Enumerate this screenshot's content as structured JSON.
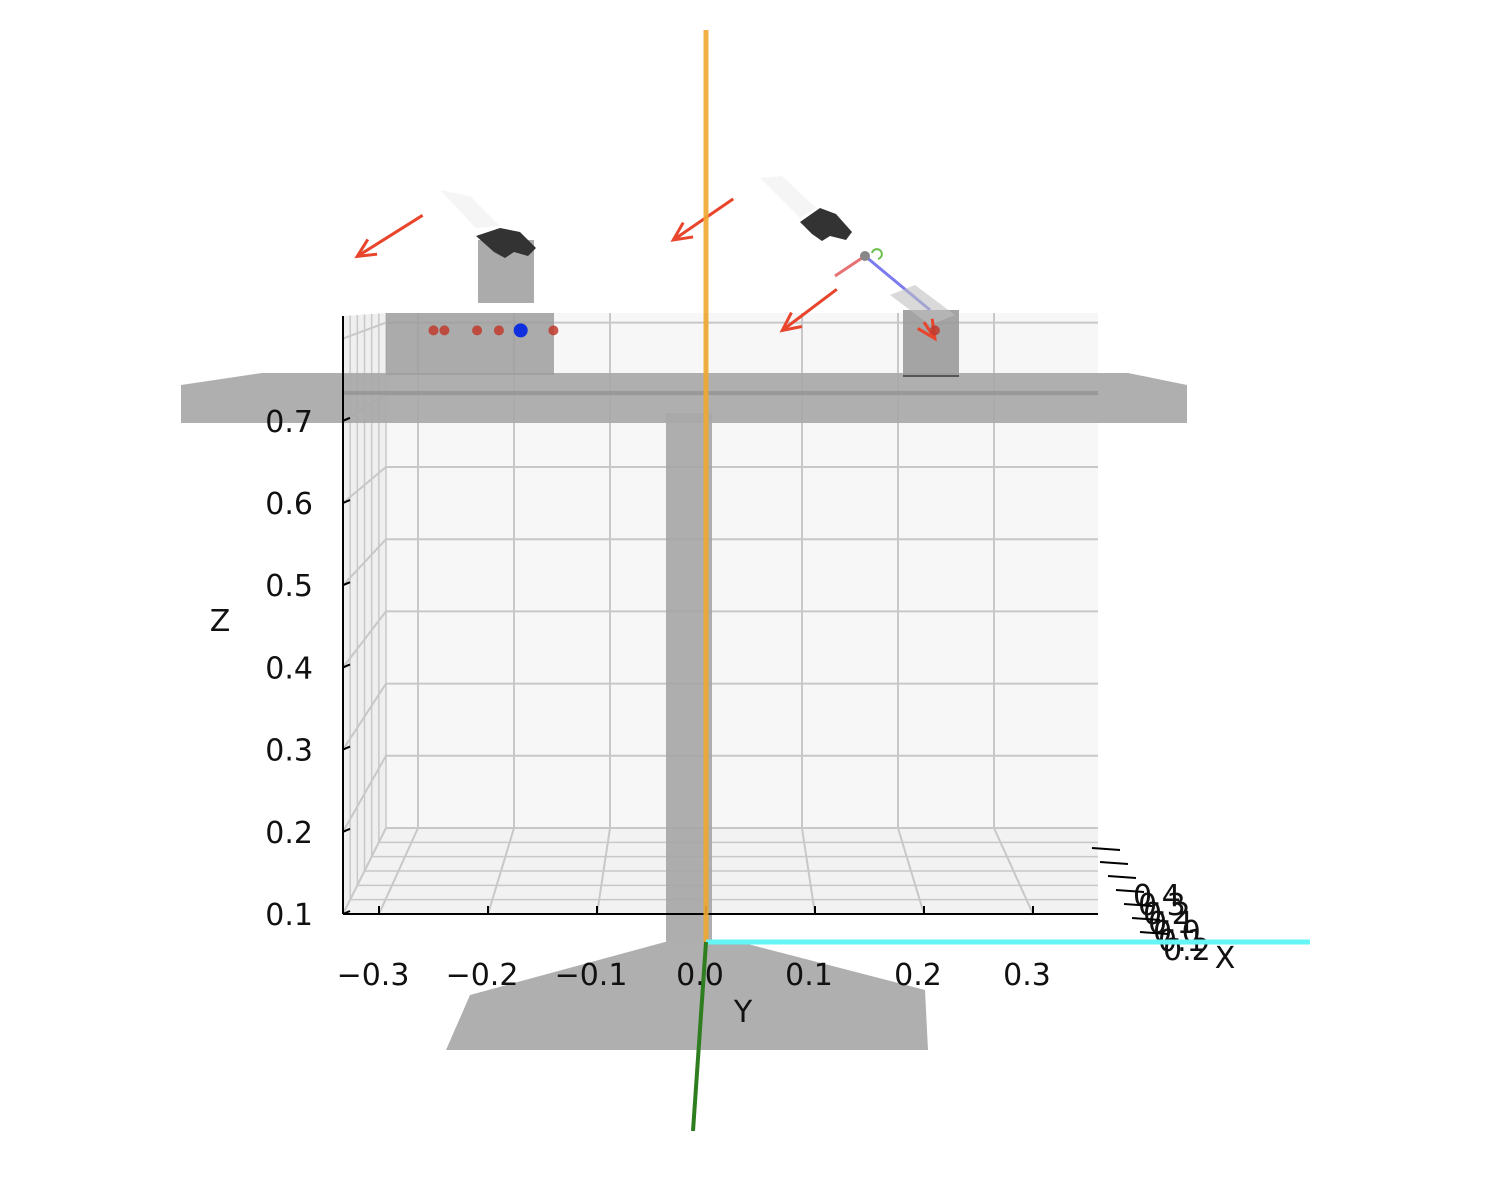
{
  "chart_data": {
    "type": "scatter",
    "projection": "3d",
    "view": "looking along the X axis (Y horizontal, Z vertical)",
    "xlabel": "X",
    "ylabel": "Y",
    "zlabel": "Z",
    "ylim": [
      -0.35,
      0.36
    ],
    "zlim": [
      0.1,
      0.8
    ],
    "y_ticks": [
      "−0.3",
      "−0.2",
      "−0.1",
      "0.0",
      "0.1",
      "0.2",
      "0.3"
    ],
    "y_tick_values": [
      -0.3,
      -0.2,
      -0.1,
      0.0,
      0.1,
      0.2,
      0.3
    ],
    "z_ticks": [
      "0.1",
      "0.2",
      "0.3",
      "0.4",
      "0.5",
      "0.6",
      "0.7"
    ],
    "z_tick_values": [
      0.1,
      0.2,
      0.3,
      0.4,
      0.5,
      0.6,
      0.7
    ],
    "x_ticks": [
      "0.4",
      "0.3",
      "0.2",
      "0.1",
      "0.0",
      "0.1",
      "0.2"
    ],
    "grid": true,
    "colors": {
      "grid": "#c8c8c8",
      "axes": "#000000",
      "table": "#a8a8a8",
      "orange_axis": "#f0a830",
      "green_axis": "#2e7d1e",
      "cyan_axis": "#66f5f5",
      "red_marker": "#c0392b",
      "blue_marker": "#1030e0",
      "arrow": "#e8452c"
    },
    "markers": [
      {
        "y": -0.25,
        "z": 0.81,
        "color": "red"
      },
      {
        "y": -0.24,
        "z": 0.81,
        "color": "red"
      },
      {
        "y": -0.21,
        "z": 0.81,
        "color": "red"
      },
      {
        "y": -0.19,
        "z": 0.81,
        "color": "red"
      },
      {
        "y": -0.17,
        "z": 0.81,
        "color": "blue"
      },
      {
        "y": -0.14,
        "z": 0.81,
        "color": "red"
      },
      {
        "y": 0.21,
        "z": 0.81,
        "color": "red"
      }
    ],
    "arrows": [
      {
        "from": [
          -0.26,
          0.95
        ],
        "to": [
          -0.32,
          0.9
        ]
      },
      {
        "from": [
          0.025,
          0.97
        ],
        "to": [
          -0.03,
          0.92
        ]
      },
      {
        "from": [
          0.12,
          0.86
        ],
        "to": [
          0.07,
          0.81
        ]
      },
      {
        "from": [
          0.2,
          0.82
        ],
        "to": [
          0.21,
          0.8
        ]
      }
    ]
  }
}
